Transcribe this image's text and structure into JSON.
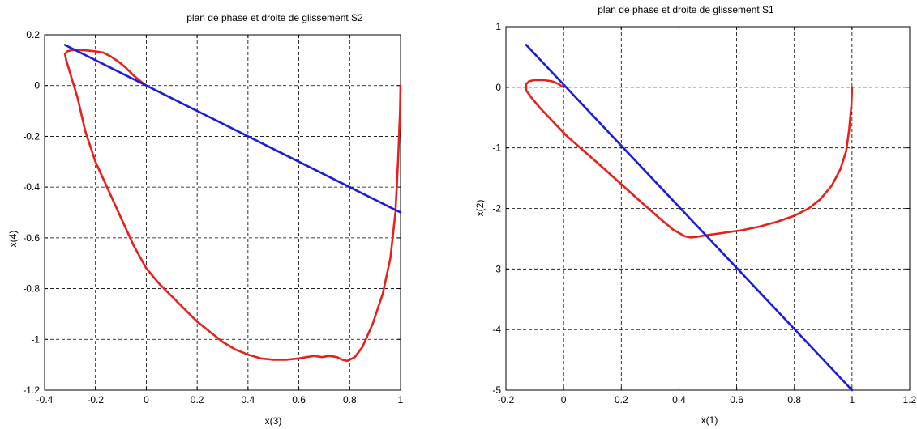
{
  "chart_data": [
    {
      "type": "line",
      "title": "plan de phase et droite de glissement S2",
      "xlabel": "x(3)",
      "ylabel": "x(4)",
      "xlim": [
        -0.4,
        1
      ],
      "ylim": [
        -1.2,
        0.2
      ],
      "xticks": [
        -0.4,
        -0.2,
        0,
        0.2,
        0.4,
        0.6,
        0.8,
        1
      ],
      "yticks": [
        -1.2,
        -1,
        -0.8,
        -0.6,
        -0.4,
        -0.2,
        0,
        0.2
      ],
      "xtick_labels": [
        "-0.4",
        "-0.2",
        "0",
        "0.2",
        "0.4",
        "0.6",
        "0.8",
        "1"
      ],
      "ytick_labels": [
        "-1.2",
        "-1",
        "-0.8",
        "-0.6",
        "-0.4",
        "-0.2",
        "0",
        "0.2"
      ],
      "grid": true,
      "series": [
        {
          "color": "#e8201b",
          "x": [
            1,
            0.998,
            0.99,
            0.98,
            0.96,
            0.93,
            0.89,
            0.85,
            0.82,
            0.79,
            0.77,
            0.75,
            0.72,
            0.69,
            0.66,
            0.63,
            0.6,
            0.55,
            0.5,
            0.45,
            0.4,
            0.35,
            0.3,
            0.25,
            0.2,
            0.15,
            0.1,
            0.05,
            0,
            -0.05,
            -0.1,
            -0.15,
            -0.2,
            -0.24,
            -0.27,
            -0.3,
            -0.315,
            -0.32,
            -0.31,
            -0.29,
            -0.26,
            -0.23,
            -0.2,
            -0.17,
            -0.14,
            -0.11,
            -0.08,
            -0.05,
            -0.02,
            0
          ],
          "y": [
            0,
            -0.1,
            -0.3,
            -0.5,
            -0.68,
            -0.82,
            -0.94,
            -1.03,
            -1.07,
            -1.085,
            -1.08,
            -1.07,
            -1.065,
            -1.07,
            -1.065,
            -1.07,
            -1.075,
            -1.08,
            -1.08,
            -1.075,
            -1.06,
            -1.04,
            -1.01,
            -0.97,
            -0.93,
            -0.88,
            -0.83,
            -0.78,
            -0.72,
            -0.63,
            -0.52,
            -0.41,
            -0.3,
            -0.18,
            -0.05,
            0.05,
            0.1,
            0.125,
            0.135,
            0.14,
            0.14,
            0.138,
            0.135,
            0.13,
            0.115,
            0.095,
            0.07,
            0.04,
            0.015,
            0
          ]
        },
        {
          "color": "#1a1ae0",
          "x": [
            -0.32,
            1
          ],
          "y": [
            0.16,
            -0.5
          ]
        }
      ]
    },
    {
      "type": "line",
      "title": "plan de phase et droite de glissement S1",
      "xlabel": "x(1)",
      "ylabel": "x(2)",
      "xlim": [
        -0.2,
        1.2
      ],
      "ylim": [
        -5,
        1
      ],
      "xticks": [
        -0.2,
        0,
        0.2,
        0.4,
        0.6,
        0.8,
        1,
        1.2
      ],
      "yticks": [
        -5,
        -4,
        -3,
        -2,
        -1,
        0,
        1
      ],
      "xtick_labels": [
        "-0.2",
        "0",
        "0.2",
        "0.4",
        "0.6",
        "0.8",
        "1",
        "1.2"
      ],
      "ytick_labels": [
        "-5",
        "-4",
        "-3",
        "-2",
        "-1",
        "0",
        "1"
      ],
      "grid": true,
      "series": [
        {
          "color": "#e8201b",
          "x": [
            1,
            0.998,
            0.99,
            0.98,
            0.96,
            0.93,
            0.89,
            0.85,
            0.8,
            0.74,
            0.68,
            0.62,
            0.56,
            0.5,
            0.46,
            0.44,
            0.42,
            0.38,
            0.33,
            0.27,
            0.2,
            0.13,
            0.07,
            0.01,
            -0.04,
            -0.08,
            -0.11,
            -0.13,
            -0.13,
            -0.12,
            -0.1,
            -0.07,
            -0.04,
            -0.02,
            0
          ],
          "y": [
            0,
            -0.3,
            -0.7,
            -1.05,
            -1.35,
            -1.62,
            -1.85,
            -2.0,
            -2.12,
            -2.22,
            -2.3,
            -2.36,
            -2.4,
            -2.44,
            -2.47,
            -2.48,
            -2.46,
            -2.35,
            -2.15,
            -1.9,
            -1.6,
            -1.3,
            -1.05,
            -0.8,
            -0.55,
            -0.35,
            -0.18,
            -0.05,
            0.05,
            0.1,
            0.12,
            0.12,
            0.1,
            0.06,
            0
          ]
        },
        {
          "color": "#1a1ae0",
          "x": [
            -0.13,
            1
          ],
          "y": [
            0.7,
            -5
          ]
        }
      ]
    }
  ]
}
